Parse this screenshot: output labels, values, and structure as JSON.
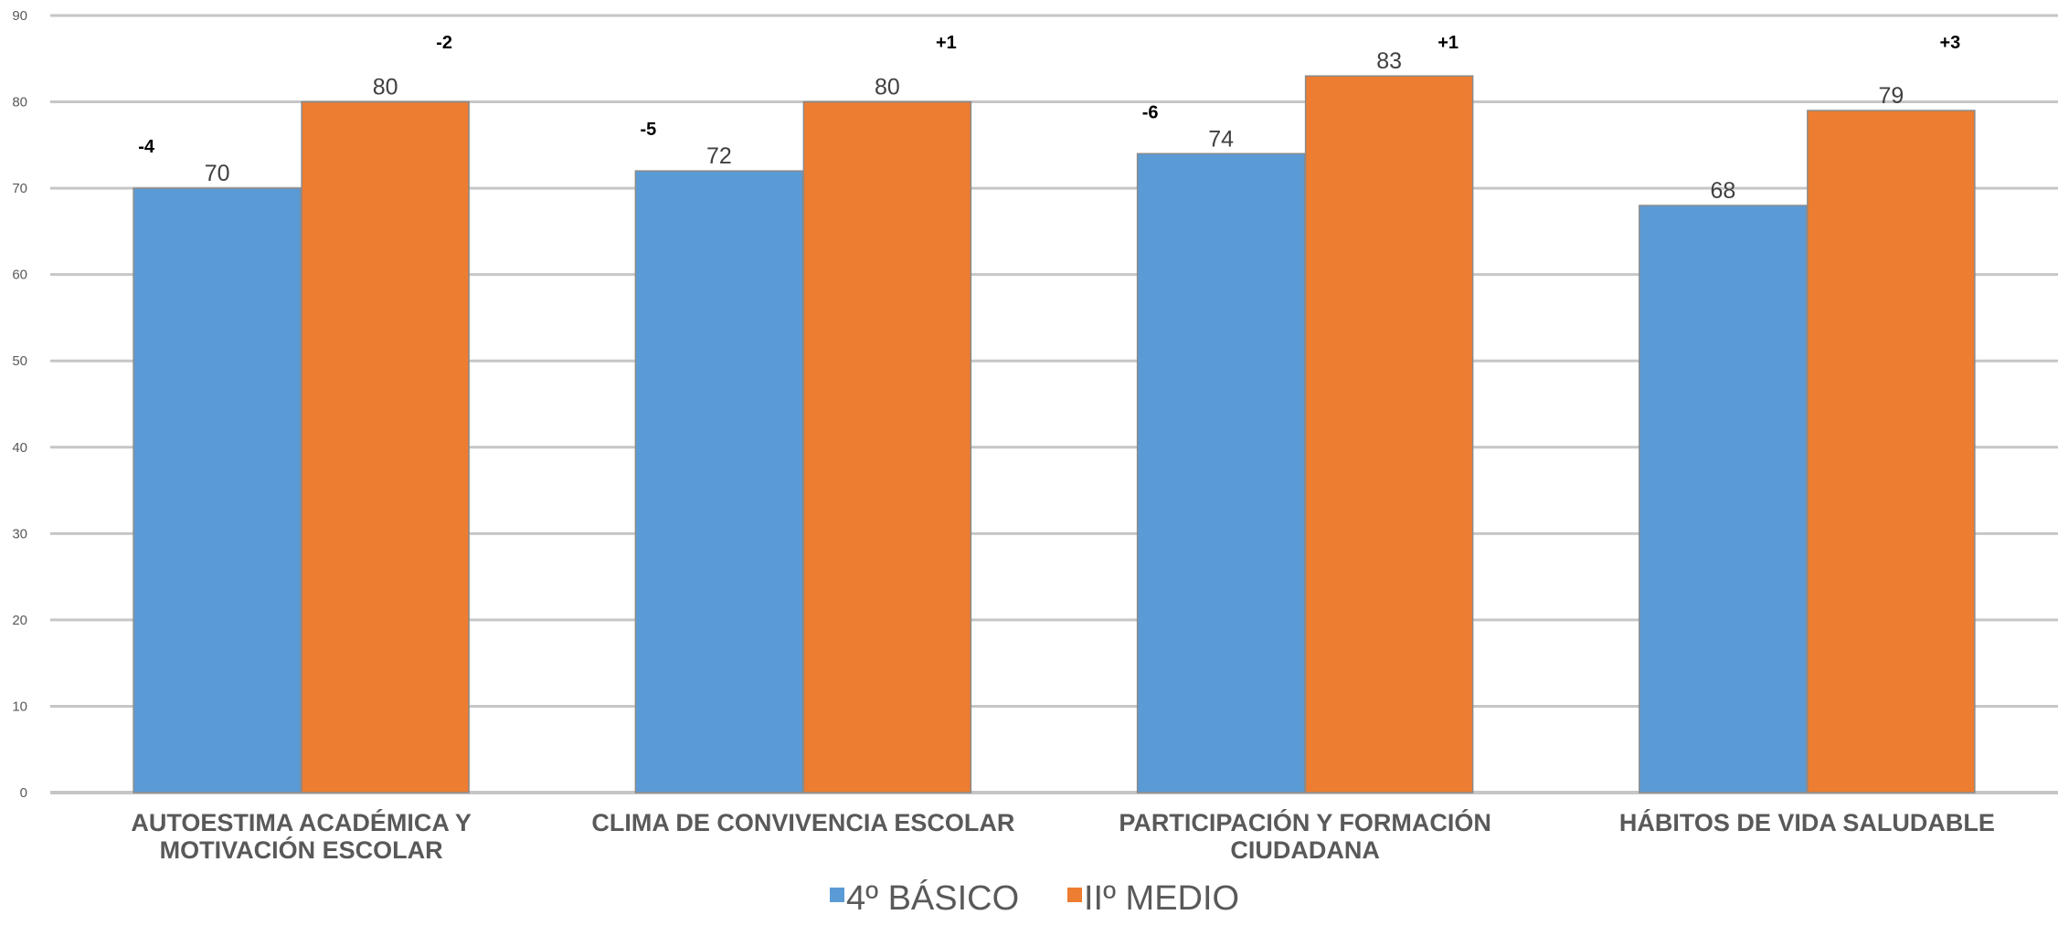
{
  "chart_data": {
    "type": "bar",
    "categories": [
      [
        "AUTOESTIMA ACADÉMICA Y",
        "MOTIVACIÓN ESCOLAR"
      ],
      [
        "CLIMA DE CONVIVENCIA ESCOLAR"
      ],
      [
        "PARTICIPACIÓN Y FORMACIÓN",
        "CIUDADANA"
      ],
      [
        "HÁBITOS DE VIDA SALUDABLE"
      ]
    ],
    "series": [
      {
        "name": "4º BÁSICO",
        "color": "#5B9BD5",
        "values": [
          70,
          72,
          74,
          68
        ],
        "deltas": [
          "-4",
          "-5",
          "-6",
          ""
        ]
      },
      {
        "name": "IIº MEDIO",
        "color": "#ED7D31",
        "values": [
          80,
          80,
          83,
          79
        ],
        "deltas": [
          "-2",
          "+1",
          "+1",
          "+3"
        ]
      }
    ],
    "ylim": [
      0,
      90
    ],
    "yticks": [
      0,
      10,
      20,
      30,
      40,
      50,
      60,
      70,
      80,
      90
    ],
    "grid": true,
    "legend_position": "bottom-center",
    "title": "",
    "xlabel": "",
    "ylabel": ""
  }
}
